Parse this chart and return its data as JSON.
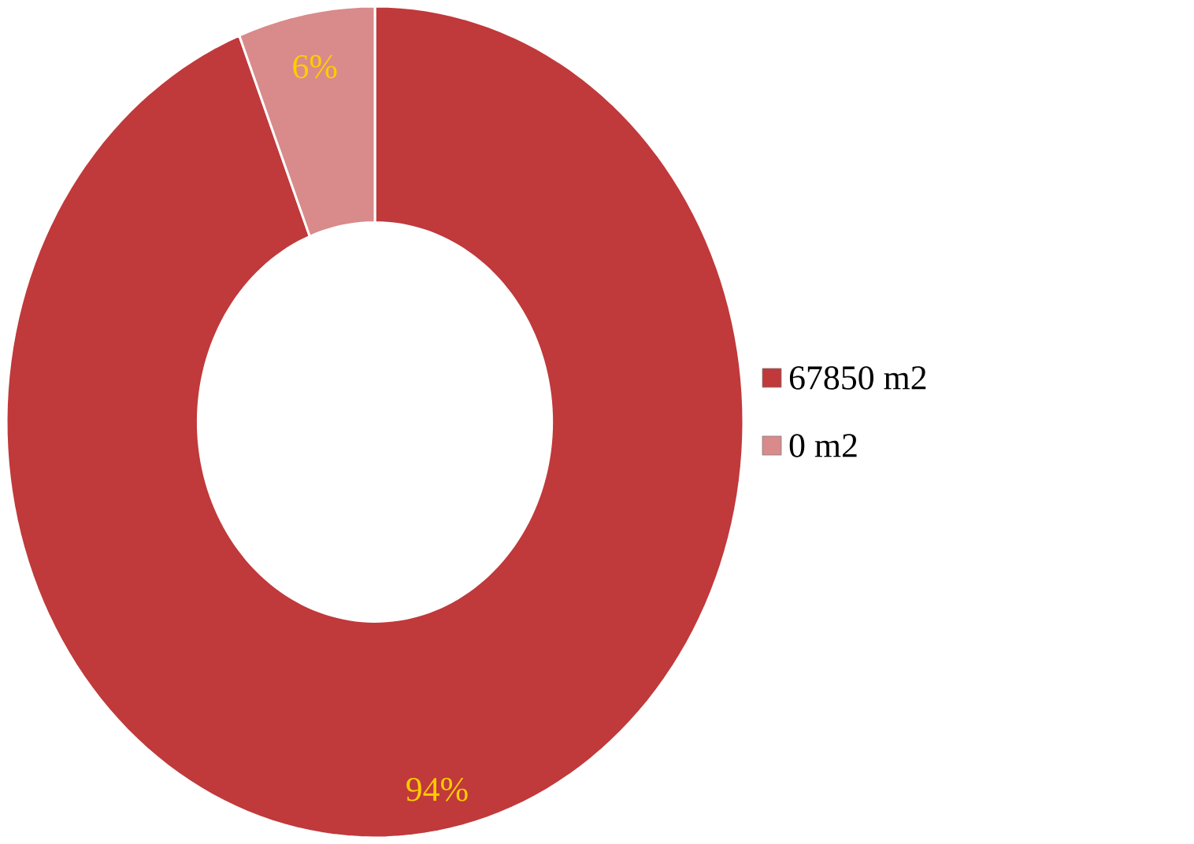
{
  "chart_data": {
    "type": "donut",
    "categories": [
      "67850 m2",
      "0 m2"
    ],
    "values": [
      94,
      6
    ],
    "colors": [
      "#c0393b",
      "#d98a8a"
    ],
    "value_labels": [
      "94%",
      "6%"
    ],
    "legend": "right"
  }
}
